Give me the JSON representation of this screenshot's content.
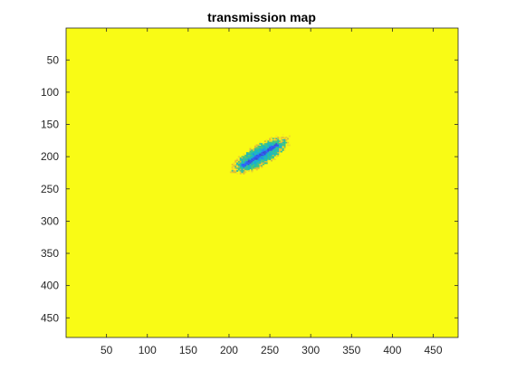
{
  "chart_data": {
    "type": "heatmap",
    "title": "transmission map",
    "xlabel": "",
    "ylabel": "",
    "xlim": [
      0.5,
      480.5
    ],
    "ylim": [
      0.5,
      480.5
    ],
    "y_reversed": true,
    "x_ticks": [
      50,
      100,
      150,
      200,
      250,
      300,
      350,
      400,
      450
    ],
    "y_ticks": [
      50,
      100,
      150,
      200,
      250,
      300,
      350,
      400,
      450
    ],
    "background_value": 1.0,
    "colormap": [
      "#3e26a8",
      "#2f67fb",
      "#13b1d8",
      "#34c48f",
      "#96c93f",
      "#e7ba3a",
      "#f9fb15"
    ],
    "blob": {
      "center": [
        238,
        198
      ],
      "angle_deg": 38,
      "semi_major": 40,
      "semi_minor": 14,
      "min_value": 0.05
    },
    "grid": false,
    "legend": "none"
  }
}
